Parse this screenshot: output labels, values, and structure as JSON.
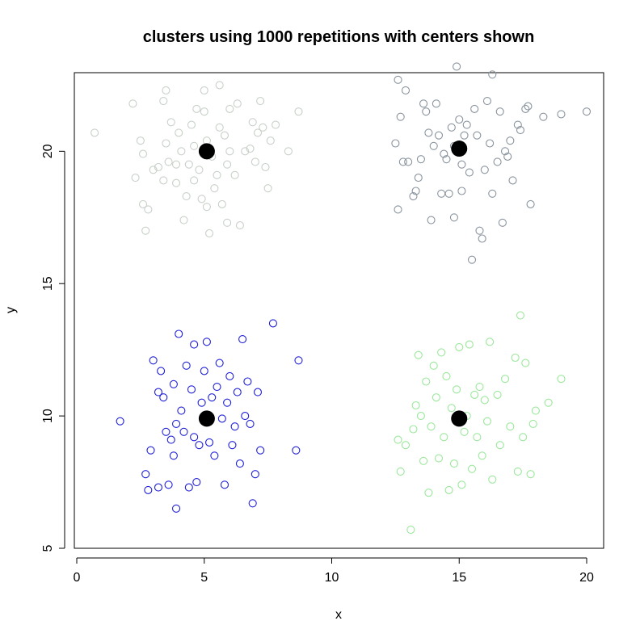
{
  "chart_data": {
    "type": "scatter",
    "title": "clusters using 1000 repetitions with centers shown",
    "xlabel": "x",
    "ylabel": "y",
    "xlim": [
      0,
      20
    ],
    "ylim": [
      5,
      23
    ],
    "xticks": [
      "0",
      "5",
      "10",
      "15",
      "20"
    ],
    "yticks": [
      "5",
      "10",
      "15",
      "20"
    ],
    "grid": false,
    "legend": "none",
    "series": [
      {
        "color": "#c8d0c8",
        "points": [
          [
            0.7,
            20.7
          ],
          [
            2.2,
            21.8
          ],
          [
            2.3,
            19.0
          ],
          [
            2.5,
            20.4
          ],
          [
            2.6,
            19.9
          ],
          [
            2.6,
            18.0
          ],
          [
            2.7,
            17.0
          ],
          [
            2.8,
            17.8
          ],
          [
            3.0,
            19.3
          ],
          [
            3.2,
            19.4
          ],
          [
            3.4,
            18.9
          ],
          [
            3.4,
            21.9
          ],
          [
            3.5,
            22.3
          ],
          [
            3.5,
            20.3
          ],
          [
            3.6,
            19.6
          ],
          [
            3.7,
            21.1
          ],
          [
            3.9,
            19.5
          ],
          [
            3.9,
            18.8
          ],
          [
            4.0,
            20.7
          ],
          [
            4.1,
            20.0
          ],
          [
            4.2,
            17.4
          ],
          [
            4.3,
            18.3
          ],
          [
            4.4,
            19.5
          ],
          [
            4.5,
            21.0
          ],
          [
            4.6,
            20.2
          ],
          [
            4.6,
            18.9
          ],
          [
            4.7,
            21.6
          ],
          [
            4.8,
            19.3
          ],
          [
            4.9,
            18.2
          ],
          [
            5.0,
            22.3
          ],
          [
            5.0,
            21.5
          ],
          [
            5.1,
            20.4
          ],
          [
            5.1,
            17.9
          ],
          [
            5.2,
            16.9
          ],
          [
            5.3,
            19.8
          ],
          [
            5.4,
            18.6
          ],
          [
            5.5,
            19.1
          ],
          [
            5.6,
            20.9
          ],
          [
            5.6,
            22.5
          ],
          [
            5.7,
            18.0
          ],
          [
            5.8,
            20.6
          ],
          [
            5.9,
            19.5
          ],
          [
            5.9,
            17.3
          ],
          [
            6.0,
            21.6
          ],
          [
            6.0,
            20.0
          ],
          [
            6.2,
            19.1
          ],
          [
            6.3,
            21.8
          ],
          [
            6.4,
            17.2
          ],
          [
            6.6,
            20.0
          ],
          [
            6.8,
            20.1
          ],
          [
            6.9,
            21.1
          ],
          [
            7.0,
            19.6
          ],
          [
            7.1,
            20.7
          ],
          [
            7.2,
            21.9
          ],
          [
            7.3,
            20.9
          ],
          [
            7.4,
            19.4
          ],
          [
            7.5,
            18.6
          ],
          [
            7.6,
            20.4
          ],
          [
            7.8,
            21.0
          ],
          [
            8.3,
            20.0
          ],
          [
            8.7,
            21.5
          ]
        ]
      },
      {
        "color": "#8a949e",
        "points": [
          [
            12.5,
            20.3
          ],
          [
            12.6,
            17.8
          ],
          [
            12.6,
            22.7
          ],
          [
            12.7,
            21.3
          ],
          [
            12.8,
            19.6
          ],
          [
            12.9,
            22.3
          ],
          [
            13.0,
            19.6
          ],
          [
            13.2,
            18.3
          ],
          [
            13.3,
            18.5
          ],
          [
            13.4,
            19.0
          ],
          [
            13.5,
            19.7
          ],
          [
            13.6,
            21.8
          ],
          [
            13.7,
            21.5
          ],
          [
            13.8,
            20.7
          ],
          [
            13.9,
            17.4
          ],
          [
            14.0,
            20.2
          ],
          [
            14.1,
            21.8
          ],
          [
            14.2,
            20.6
          ],
          [
            14.3,
            18.4
          ],
          [
            14.4,
            19.9
          ],
          [
            14.5,
            19.7
          ],
          [
            14.6,
            18.4
          ],
          [
            14.7,
            20.9
          ],
          [
            14.8,
            20.2
          ],
          [
            14.8,
            17.5
          ],
          [
            14.9,
            23.2
          ],
          [
            15.0,
            21.2
          ],
          [
            15.1,
            19.5
          ],
          [
            15.1,
            18.5
          ],
          [
            15.2,
            20.6
          ],
          [
            15.3,
            21.0
          ],
          [
            15.4,
            19.2
          ],
          [
            15.5,
            15.9
          ],
          [
            15.6,
            21.6
          ],
          [
            15.7,
            20.6
          ],
          [
            15.8,
            17.0
          ],
          [
            15.9,
            16.7
          ],
          [
            16.0,
            19.3
          ],
          [
            16.1,
            21.9
          ],
          [
            16.2,
            20.3
          ],
          [
            16.3,
            22.9
          ],
          [
            16.3,
            18.4
          ],
          [
            16.5,
            19.6
          ],
          [
            16.6,
            21.5
          ],
          [
            16.7,
            17.3
          ],
          [
            16.8,
            20.0
          ],
          [
            16.9,
            19.8
          ],
          [
            17.0,
            20.4
          ],
          [
            17.1,
            18.9
          ],
          [
            17.3,
            21.0
          ],
          [
            17.4,
            20.8
          ],
          [
            17.6,
            21.6
          ],
          [
            17.7,
            21.7
          ],
          [
            17.8,
            18.0
          ],
          [
            18.3,
            21.3
          ],
          [
            19.0,
            21.4
          ],
          [
            20.0,
            21.5
          ]
        ]
      },
      {
        "color": "#2020d8",
        "points": [
          [
            1.7,
            9.8
          ],
          [
            2.7,
            7.8
          ],
          [
            2.8,
            7.2
          ],
          [
            2.9,
            8.7
          ],
          [
            3.0,
            12.1
          ],
          [
            3.2,
            10.9
          ],
          [
            3.2,
            7.3
          ],
          [
            3.3,
            11.7
          ],
          [
            3.4,
            10.7
          ],
          [
            3.5,
            9.4
          ],
          [
            3.6,
            7.4
          ],
          [
            3.7,
            9.1
          ],
          [
            3.8,
            11.2
          ],
          [
            3.8,
            8.5
          ],
          [
            3.9,
            6.5
          ],
          [
            3.9,
            9.7
          ],
          [
            4.0,
            13.1
          ],
          [
            4.1,
            10.2
          ],
          [
            4.2,
            9.4
          ],
          [
            4.3,
            11.9
          ],
          [
            4.4,
            7.3
          ],
          [
            4.5,
            11.0
          ],
          [
            4.6,
            12.7
          ],
          [
            4.6,
            9.2
          ],
          [
            4.7,
            7.5
          ],
          [
            4.8,
            8.9
          ],
          [
            4.9,
            10.5
          ],
          [
            5.0,
            11.7
          ],
          [
            5.1,
            12.8
          ],
          [
            5.2,
            9.0
          ],
          [
            5.3,
            10.7
          ],
          [
            5.4,
            8.5
          ],
          [
            5.5,
            11.1
          ],
          [
            5.6,
            12.0
          ],
          [
            5.7,
            9.9
          ],
          [
            5.8,
            7.4
          ],
          [
            5.9,
            10.5
          ],
          [
            6.0,
            11.5
          ],
          [
            6.1,
            8.9
          ],
          [
            6.2,
            9.6
          ],
          [
            6.3,
            10.9
          ],
          [
            6.4,
            8.2
          ],
          [
            6.5,
            12.9
          ],
          [
            6.6,
            10.0
          ],
          [
            6.7,
            11.3
          ],
          [
            6.8,
            9.7
          ],
          [
            6.9,
            6.7
          ],
          [
            7.0,
            7.8
          ],
          [
            7.1,
            10.9
          ],
          [
            7.2,
            8.7
          ],
          [
            7.7,
            13.5
          ],
          [
            8.6,
            8.7
          ],
          [
            8.7,
            12.1
          ]
        ]
      },
      {
        "color": "#9be89b",
        "points": [
          [
            12.6,
            9.1
          ],
          [
            12.7,
            7.9
          ],
          [
            12.9,
            8.9
          ],
          [
            13.1,
            5.7
          ],
          [
            13.2,
            9.5
          ],
          [
            13.3,
            10.4
          ],
          [
            13.4,
            12.3
          ],
          [
            13.5,
            10.0
          ],
          [
            13.6,
            8.3
          ],
          [
            13.7,
            11.3
          ],
          [
            13.8,
            7.1
          ],
          [
            13.9,
            9.6
          ],
          [
            14.0,
            11.9
          ],
          [
            14.1,
            10.7
          ],
          [
            14.2,
            8.4
          ],
          [
            14.3,
            12.4
          ],
          [
            14.4,
            9.2
          ],
          [
            14.5,
            11.5
          ],
          [
            14.6,
            7.2
          ],
          [
            14.7,
            10.3
          ],
          [
            14.8,
            8.2
          ],
          [
            14.9,
            11.0
          ],
          [
            15.0,
            12.6
          ],
          [
            15.1,
            7.4
          ],
          [
            15.2,
            9.4
          ],
          [
            15.3,
            10.0
          ],
          [
            15.4,
            12.7
          ],
          [
            15.5,
            8.0
          ],
          [
            15.6,
            10.8
          ],
          [
            15.7,
            9.2
          ],
          [
            15.8,
            11.1
          ],
          [
            15.9,
            8.5
          ],
          [
            16.0,
            10.6
          ],
          [
            16.1,
            9.8
          ],
          [
            16.2,
            12.8
          ],
          [
            16.3,
            7.6
          ],
          [
            16.5,
            10.8
          ],
          [
            16.6,
            8.9
          ],
          [
            16.8,
            11.4
          ],
          [
            17.0,
            9.6
          ],
          [
            17.2,
            12.2
          ],
          [
            17.3,
            7.9
          ],
          [
            17.4,
            13.8
          ],
          [
            17.5,
            9.2
          ],
          [
            17.6,
            12.0
          ],
          [
            17.8,
            7.8
          ],
          [
            17.9,
            9.7
          ],
          [
            18.0,
            10.2
          ],
          [
            18.5,
            10.5
          ],
          [
            19.0,
            11.4
          ]
        ]
      }
    ],
    "centers": {
      "color": "#000000",
      "points": [
        [
          5.1,
          20.0
        ],
        [
          15.0,
          20.1
        ],
        [
          5.1,
          9.9
        ],
        [
          15.0,
          9.9
        ]
      ]
    }
  }
}
